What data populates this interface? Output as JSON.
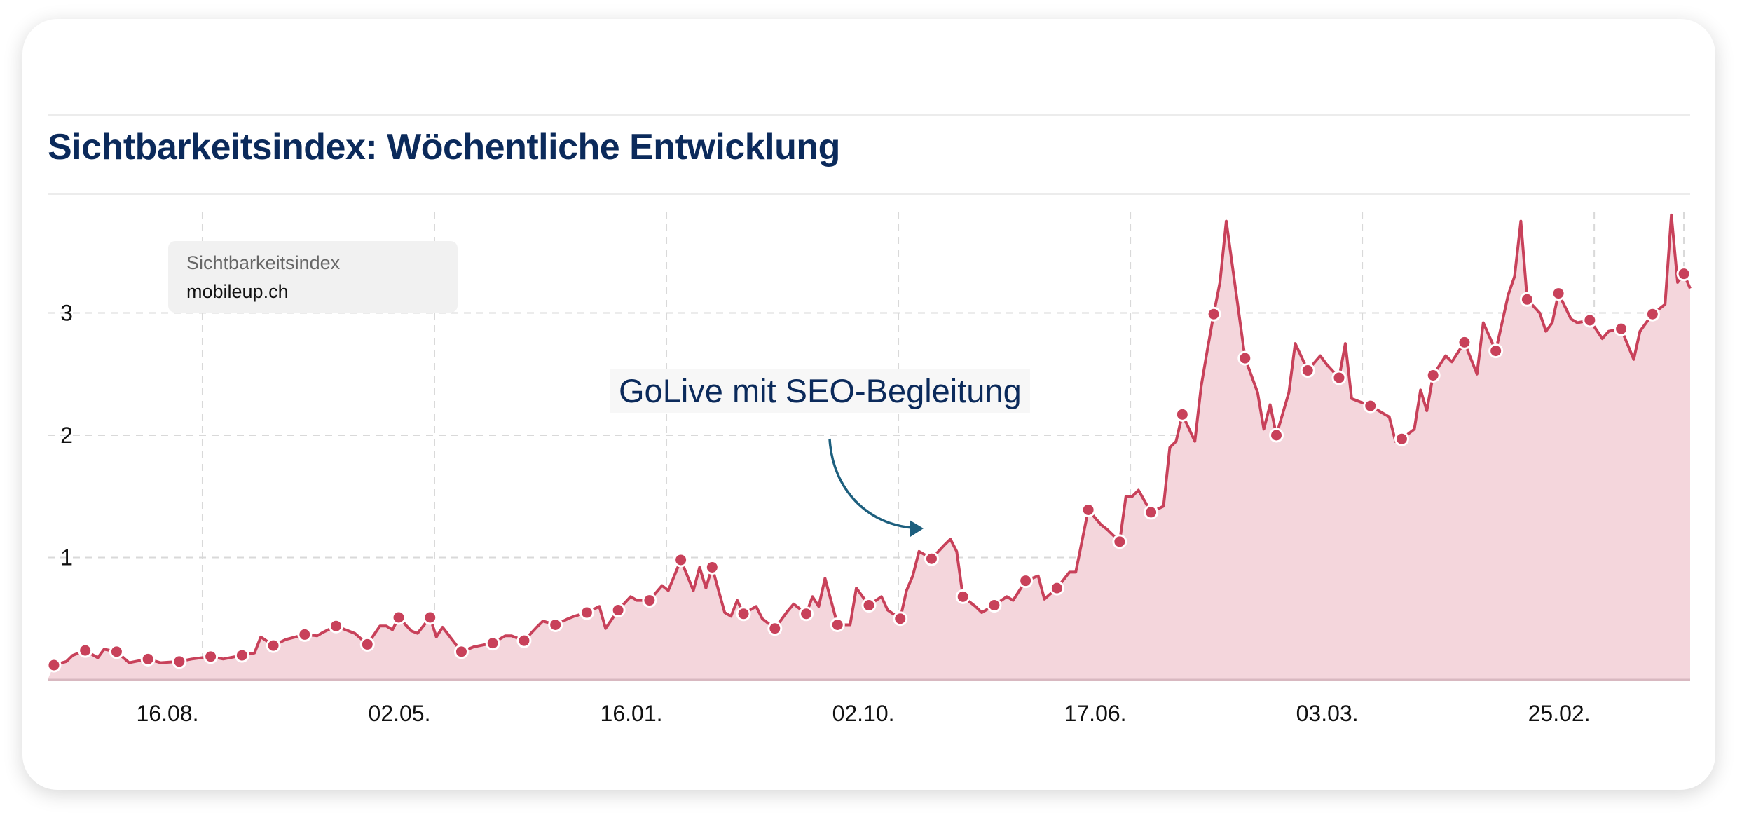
{
  "colors": {
    "title": "#0b2a5b",
    "line": "#c8415a",
    "fill": "#f4d6dc",
    "annotation": "#1d5f7e",
    "grid": "#d9d9d9"
  },
  "chart_data": {
    "type": "area",
    "title": "Sichtbarkeitsindex: Wöchentliche Entwicklung",
    "legend": {
      "title": "Sichtbarkeitsindex",
      "series": "mobileup.ch",
      "placement": "top-left"
    },
    "annotation": {
      "text": "GoLive mit SEO-Begleitung",
      "target_week": 137
    },
    "xlabel": "",
    "ylabel": "",
    "x_unit": "week index",
    "xlim": [
      -1,
      261
    ],
    "ylim": [
      0,
      3.85
    ],
    "grid": true,
    "y_ticks": [
      {
        "value": 1,
        "label": "1"
      },
      {
        "value": 2,
        "label": "2"
      },
      {
        "value": 3,
        "label": "3"
      }
    ],
    "x_ticks": [
      {
        "week": 23.7,
        "label": "16.08."
      },
      {
        "week": 60.7,
        "label": "02.05."
      },
      {
        "week": 97.7,
        "label": "16.01."
      },
      {
        "week": 134.7,
        "label": "02.10."
      },
      {
        "week": 171.7,
        "label": "17.06."
      },
      {
        "week": 208.7,
        "label": "03.03."
      },
      {
        "week": 245.7,
        "label": "25.02."
      },
      {
        "week": 260,
        "label": ""
      }
    ],
    "marker_every_weeks": 5,
    "marker_values": [
      0.12,
      0.24,
      0.23,
      0.17,
      0.15,
      0.19,
      0.2,
      0.28,
      0.37,
      0.44,
      0.29,
      0.51,
      0.51,
      0.23,
      0.3,
      0.32,
      0.45,
      0.55,
      0.57,
      0.65,
      0.98,
      0.92,
      0.54,
      0.42,
      0.54,
      0.45,
      0.61,
      0.5,
      0.99,
      0.68,
      0.61,
      0.81,
      0.75,
      1.39,
      1.13,
      1.37,
      2.17,
      2.99,
      2.63,
      2.0,
      2.53,
      2.47,
      2.24,
      1.97,
      2.49,
      2.76,
      2.69,
      3.11,
      3.16,
      2.94,
      2.87,
      2.99,
      3.32
    ],
    "intermediate_points": [
      [
        2,
        0.15
      ],
      [
        3,
        0.2
      ],
      [
        7,
        0.18
      ],
      [
        8,
        0.25
      ],
      [
        12,
        0.14
      ],
      [
        13,
        0.15
      ],
      [
        17,
        0.14
      ],
      [
        22,
        0.17
      ],
      [
        27,
        0.17
      ],
      [
        32,
        0.22
      ],
      [
        33,
        0.35
      ],
      [
        37,
        0.33
      ],
      [
        42,
        0.36
      ],
      [
        43,
        0.39
      ],
      [
        47,
        0.4
      ],
      [
        48,
        0.38
      ],
      [
        52,
        0.44
      ],
      [
        53,
        0.44
      ],
      [
        54,
        0.41
      ],
      [
        57,
        0.4
      ],
      [
        58,
        0.38
      ],
      [
        61,
        0.35
      ],
      [
        62,
        0.43
      ],
      [
        67,
        0.27
      ],
      [
        72,
        0.36
      ],
      [
        73,
        0.36
      ],
      [
        77,
        0.43
      ],
      [
        78,
        0.48
      ],
      [
        82,
        0.5
      ],
      [
        83,
        0.52
      ],
      [
        87,
        0.6
      ],
      [
        88,
        0.42
      ],
      [
        92,
        0.68
      ],
      [
        93,
        0.65
      ],
      [
        97,
        0.77
      ],
      [
        98,
        0.73
      ],
      [
        102,
        0.73
      ],
      [
        103,
        0.92
      ],
      [
        104,
        0.75
      ],
      [
        107,
        0.55
      ],
      [
        108,
        0.52
      ],
      [
        109,
        0.65
      ],
      [
        112,
        0.6
      ],
      [
        113,
        0.5
      ],
      [
        117,
        0.56
      ],
      [
        118,
        0.62
      ],
      [
        121,
        0.68
      ],
      [
        122,
        0.6
      ],
      [
        123,
        0.83
      ],
      [
        127,
        0.45
      ],
      [
        128,
        0.75
      ],
      [
        132,
        0.68
      ],
      [
        133,
        0.57
      ],
      [
        136,
        0.73
      ],
      [
        137,
        0.85
      ],
      [
        138,
        1.05
      ],
      [
        142,
        1.1
      ],
      [
        143,
        1.15
      ],
      [
        144,
        1.05
      ],
      [
        147,
        0.6
      ],
      [
        148,
        0.55
      ],
      [
        152,
        0.68
      ],
      [
        153,
        0.65
      ],
      [
        157,
        0.85
      ],
      [
        158,
        0.66
      ],
      [
        162,
        0.88
      ],
      [
        163,
        0.88
      ],
      [
        167,
        1.27
      ],
      [
        168,
        1.23
      ],
      [
        171,
        1.5
      ],
      [
        172,
        1.5
      ],
      [
        173,
        1.55
      ],
      [
        177,
        1.42
      ],
      [
        178,
        1.9
      ],
      [
        179,
        1.95
      ],
      [
        182,
        1.95
      ],
      [
        183,
        2.4
      ],
      [
        184,
        2.7
      ],
      [
        186,
        3.25
      ],
      [
        187,
        3.75
      ],
      [
        192,
        2.35
      ],
      [
        193,
        2.05
      ],
      [
        194,
        2.25
      ],
      [
        197,
        2.35
      ],
      [
        198,
        2.75
      ],
      [
        202,
        2.65
      ],
      [
        203,
        2.58
      ],
      [
        206,
        2.75
      ],
      [
        207,
        2.3
      ],
      [
        212,
        2.18
      ],
      [
        213,
        2.15
      ],
      [
        214,
        1.95
      ],
      [
        217,
        2.05
      ],
      [
        218,
        2.37
      ],
      [
        219,
        2.2
      ],
      [
        222,
        2.65
      ],
      [
        223,
        2.6
      ],
      [
        227,
        2.5
      ],
      [
        228,
        2.92
      ],
      [
        232,
        3.15
      ],
      [
        233,
        3.3
      ],
      [
        234,
        3.75
      ],
      [
        237,
        3.0
      ],
      [
        238,
        2.85
      ],
      [
        239,
        2.92
      ],
      [
        242,
        2.95
      ],
      [
        243,
        2.92
      ],
      [
        247,
        2.79
      ],
      [
        248,
        2.85
      ],
      [
        252,
        2.62
      ],
      [
        253,
        2.85
      ],
      [
        257,
        3.07
      ],
      [
        258,
        3.8
      ],
      [
        259,
        3.25
      ],
      [
        261,
        3.2
      ]
    ]
  }
}
